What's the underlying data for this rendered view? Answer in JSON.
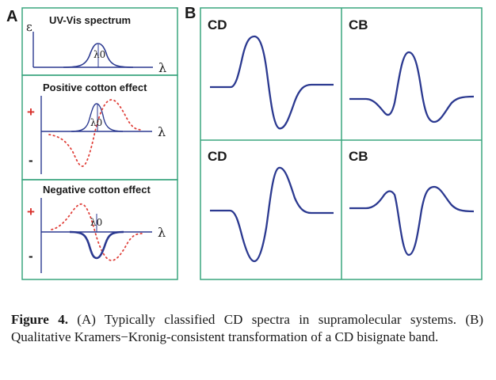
{
  "panel_a": {
    "letter": "A",
    "uvvis": {
      "title": "UV-Vis spectrum",
      "y_symbol": "ε",
      "x_symbol": "λ",
      "band_label": "λ0"
    },
    "positive": {
      "title": "Positive cotton effect",
      "plus": "+",
      "minus": "-",
      "x_symbol": "λ",
      "band_label": "λ0"
    },
    "negative": {
      "title": "Negative cotton effect",
      "plus": "+",
      "minus": "-",
      "x_symbol": "λ",
      "band_label": "λ0"
    }
  },
  "panel_b": {
    "letter": "B",
    "cells": [
      {
        "label": "CD"
      },
      {
        "label": "CB"
      },
      {
        "label": "CD"
      },
      {
        "label": "CB"
      }
    ]
  },
  "caption": {
    "lead": "Figure 4.",
    "text": " (A) Typically classified CD spectra in supramolecular systems. (B) Qualitative Kramers−Kronig-consistent transformation of a CD bisignate band."
  },
  "colors": {
    "frame": "#3aa57e",
    "curve": "#2b3990",
    "dotted": "#e0403a",
    "plus_minus": "#d9312b",
    "axis": "#2b3990"
  }
}
